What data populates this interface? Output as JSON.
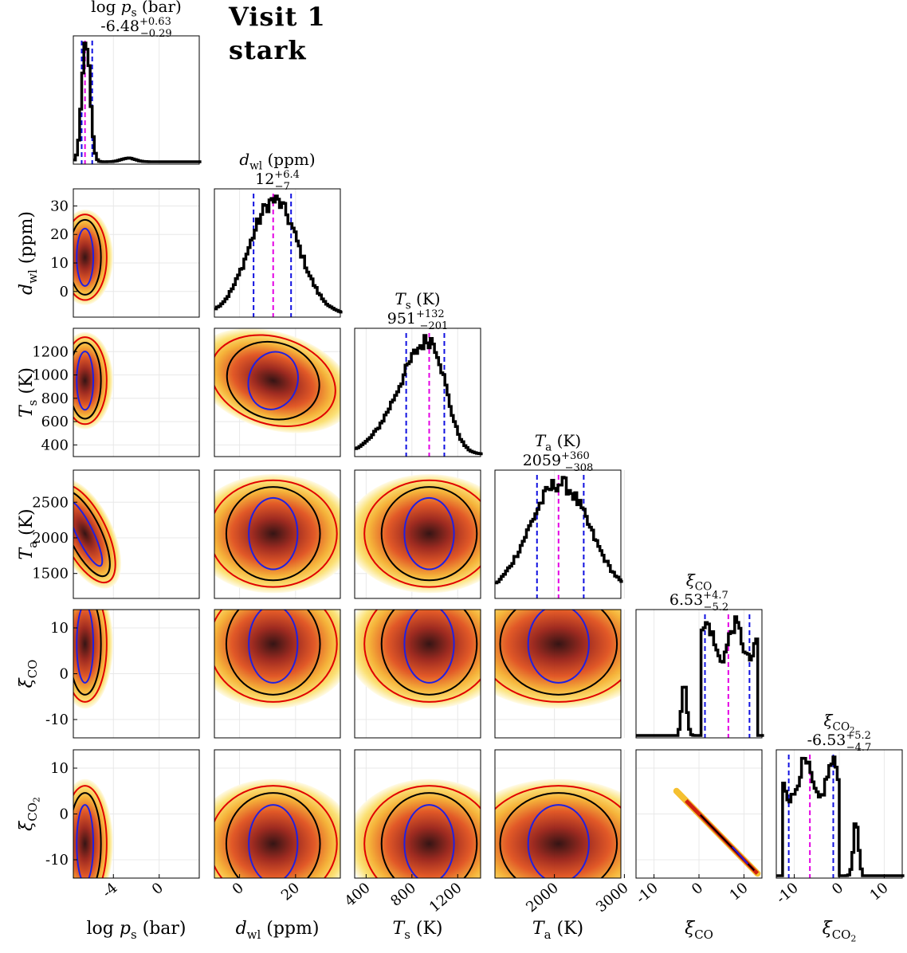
{
  "figure": {
    "title_line1": "Visit 1",
    "title_line2": "stark"
  },
  "chart_data": {
    "type": "corner",
    "parameters": [
      {
        "key": "logps",
        "label": "log p_s (bar)",
        "median": "-6.48",
        "plus": "+0.63",
        "minus": "−0.29",
        "range": [
          -7.5,
          3.5
        ],
        "ticks": [
          -4,
          0
        ],
        "tick_labels": [
          "-4",
          "0"
        ],
        "median_value": -6.48,
        "lo_value": -6.77,
        "hi_value": -5.85
      },
      {
        "key": "dwl",
        "label": "d_wl (ppm)",
        "median": "12",
        "plus": "+6.4",
        "minus": "−7",
        "range": [
          -9,
          36
        ],
        "ticks": [
          0,
          20
        ],
        "tick_labels": [
          "0",
          "20"
        ],
        "ytick_values": [
          0,
          10,
          20,
          30
        ],
        "ytick_labels": [
          "0",
          "10",
          "20",
          "30"
        ],
        "median_value": 12,
        "lo_value": 5,
        "hi_value": 18.4
      },
      {
        "key": "Ts",
        "label": "T_s (K)",
        "median": "951",
        "plus": "+132",
        "minus": "−201",
        "range": [
          300,
          1400
        ],
        "ticks": [
          400,
          800,
          1200
        ],
        "tick_labels": [
          "400",
          "800",
          "1200"
        ],
        "ytick_values": [
          400,
          600,
          800,
          1000,
          1200
        ],
        "ytick_labels": [
          "400",
          "600",
          "800",
          "1000",
          "1200"
        ],
        "median_value": 951,
        "lo_value": 750,
        "hi_value": 1083
      },
      {
        "key": "Ta",
        "label": "T_a (K)",
        "median": "2059",
        "plus": "+360",
        "minus": "−308",
        "range": [
          1150,
          2950
        ],
        "ticks": [
          2000,
          3000
        ],
        "tick_labels": [
          "2000",
          "3000"
        ],
        "ytick_values": [
          1500,
          2000,
          2500
        ],
        "ytick_labels": [
          "1500",
          "2000",
          "2500"
        ],
        "median_value": 2059,
        "lo_value": 1751,
        "hi_value": 2419
      },
      {
        "key": "xiCO",
        "label": "ξ_CO",
        "median": "6.53",
        "plus": "+4.7",
        "minus": "−5.2",
        "range": [
          -14,
          14
        ],
        "ticks": [
          -10,
          0,
          10
        ],
        "tick_labels": [
          "-10",
          "0",
          "10"
        ],
        "ytick_values": [
          -10,
          0,
          10
        ],
        "ytick_labels": [
          "-10",
          "0",
          "10"
        ],
        "median_value": 6.53,
        "lo_value": 1.33,
        "hi_value": 11.23
      },
      {
        "key": "xiCO2",
        "label": "ξ_CO2",
        "median": "-6.53",
        "plus": "+5.2",
        "minus": "−4.7",
        "range": [
          -14,
          14
        ],
        "ticks": [
          -10,
          0,
          10
        ],
        "tick_labels": [
          "-10",
          "0",
          "10"
        ],
        "ytick_values": [
          -10,
          0,
          10
        ],
        "ytick_labels": [
          "-10",
          "0",
          "10"
        ],
        "median_value": -6.53,
        "lo_value": -11.23,
        "hi_value": -1.33
      }
    ],
    "contour_levels": [
      "1σ (blue)",
      "2σ (black)",
      "3σ (red)"
    ],
    "colors": {
      "median": "#e400e4",
      "quantile": "#1010e0",
      "hist": "#000000",
      "contour_1": "#2020e0",
      "contour_2": "#000000",
      "contour_3": "#e00000"
    }
  }
}
